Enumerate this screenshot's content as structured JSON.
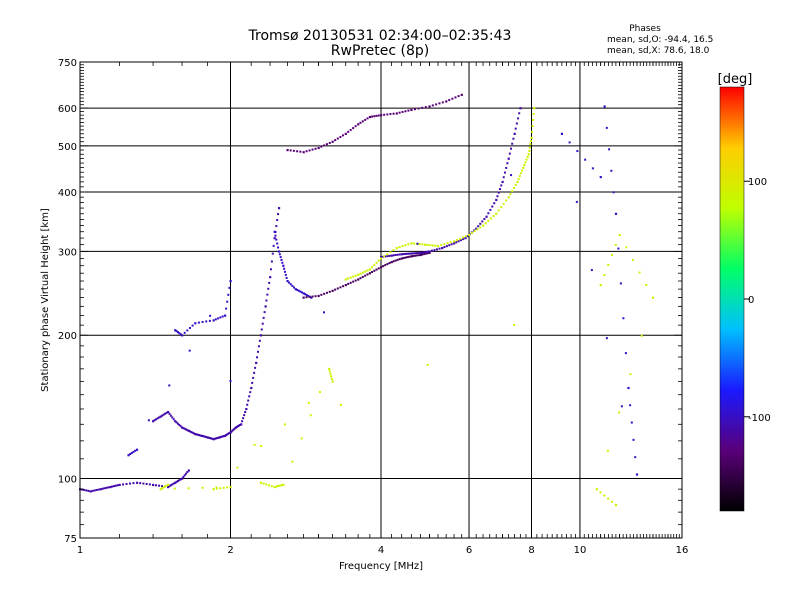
{
  "chart_data": {
    "type": "scatter",
    "title": "Tromsø 20130531 02:34:00–02:35:43",
    "subtitle": "RwPretec (8p)",
    "stats": {
      "title": "Phases",
      "line_o": "mean, sd,O: -94.4, 16.5",
      "line_x": "mean, sd,X:  78.6, 18.0"
    },
    "xlabel": "Frequency [MHz]",
    "ylabel": "Stationary phase Virtual Height [km]",
    "x_scale": "log",
    "y_scale": "log",
    "xlim": [
      1,
      16
    ],
    "ylim": [
      75,
      750
    ],
    "x_ticks": [
      1,
      2,
      4,
      6,
      8,
      10,
      16
    ],
    "x_tick_labels": [
      "1",
      "2",
      "4",
      "6",
      "8",
      "10",
      "16"
    ],
    "y_ticks": [
      75,
      100,
      200,
      300,
      400,
      500,
      600,
      750
    ],
    "y_tick_labels": [
      "75",
      "100",
      "200",
      "300",
      "400",
      "500",
      "600",
      "750"
    ],
    "grid": true,
    "colorbar": {
      "label": "[deg]",
      "range": [
        -180,
        180
      ],
      "tick_values": [
        100,
        0,
        -100
      ],
      "tick_labels": [
        "100",
        "0",
        "-100"
      ],
      "colormap": [
        "#000000",
        "#5a007a",
        "#1a1aff",
        "#00c0ff",
        "#00ff66",
        "#bfff00",
        "#ffcc00",
        "#ff0000"
      ]
    },
    "series": [
      {
        "name": "",
        "phase": -110,
        "x": [
          1.0,
          1.05,
          1.1,
          1.15,
          1.2,
          1.3,
          1.4,
          1.5,
          1.55,
          1.6,
          1.65
        ],
        "y": [
          95,
          94,
          95,
          96,
          97,
          98,
          97,
          96,
          98,
          100,
          104
        ]
      },
      {
        "name": "",
        "phase": -110,
        "x": [
          1.4,
          1.45,
          1.5,
          1.55,
          1.6,
          1.65,
          1.7,
          1.75,
          1.8,
          1.85,
          1.9,
          1.95,
          2.0,
          2.05,
          2.1,
          2.15,
          2.2,
          2.25,
          2.3,
          2.35,
          2.4,
          2.45,
          2.5
        ],
        "y": [
          132,
          135,
          138,
          132,
          128,
          126,
          124,
          123,
          122,
          121,
          122,
          123,
          125,
          128,
          130,
          140,
          155,
          175,
          200,
          230,
          265,
          320,
          370
        ]
      },
      {
        "name": "",
        "phase": -100,
        "x": [
          2.45,
          2.5,
          2.55,
          2.6,
          2.7,
          2.8,
          2.9
        ],
        "y": [
          330,
          300,
          280,
          260,
          250,
          245,
          240
        ]
      },
      {
        "name": "",
        "phase": -140,
        "x": [
          2.8,
          3.0,
          3.2,
          3.4,
          3.6,
          3.8,
          4.0,
          4.2,
          4.4,
          4.6,
          4.8,
          5.0
        ],
        "y": [
          240,
          242,
          248,
          255,
          262,
          270,
          278,
          285,
          290,
          293,
          295,
          298
        ]
      },
      {
        "name": "",
        "phase": -110,
        "x": [
          4.0,
          4.2,
          4.4,
          4.6,
          4.8,
          5.0,
          5.3,
          5.6,
          5.9,
          6.2,
          6.5,
          6.8,
          7.0,
          7.2,
          7.4,
          7.6
        ],
        "y": [
          292,
          294,
          296,
          297,
          298,
          300,
          305,
          312,
          320,
          335,
          355,
          385,
          420,
          470,
          530,
          600
        ]
      },
      {
        "name": "",
        "phase": 90,
        "x": [
          3.4,
          3.6,
          3.8,
          4.0,
          4.3,
          4.6,
          4.9,
          5.2,
          5.6,
          6.0,
          6.4,
          6.8,
          7.2,
          7.5,
          7.7,
          7.9,
          8.0,
          8.1
        ],
        "y": [
          262,
          268,
          275,
          290,
          305,
          312,
          310,
          308,
          315,
          325,
          340,
          360,
          390,
          420,
          450,
          480,
          520,
          600
        ]
      },
      {
        "name": "",
        "phase": -130,
        "x": [
          2.6,
          2.8,
          3.0,
          3.2,
          3.4,
          3.6,
          3.8,
          4.0,
          4.3,
          4.6,
          5.0,
          5.4,
          5.8
        ],
        "y": [
          490,
          485,
          495,
          510,
          530,
          555,
          575,
          580,
          585,
          595,
          605,
          620,
          640
        ]
      },
      {
        "name": "",
        "phase": 90,
        "x": [
          2.3,
          2.45,
          2.55,
          3.15,
          3.2,
          1.85,
          2.0,
          1.45,
          1.5,
          11.0,
          12.0,
          14.0,
          10.8,
          11.8
        ],
        "y": [
          98,
          96,
          97,
          170,
          160,
          95,
          96,
          95,
          97,
          255,
          325,
          240,
          95,
          88
        ]
      },
      {
        "name": "",
        "phase": -100,
        "x": [
          1.55,
          1.6,
          1.7,
          1.85,
          1.95,
          2.0,
          1.25,
          1.3,
          11.2,
          11.8,
          12.5,
          13.0,
          9.2,
          11.0
        ],
        "y": [
          205,
          200,
          212,
          215,
          220,
          260,
          112,
          115,
          605,
          360,
          155,
          102,
          530,
          430
        ]
      }
    ]
  }
}
